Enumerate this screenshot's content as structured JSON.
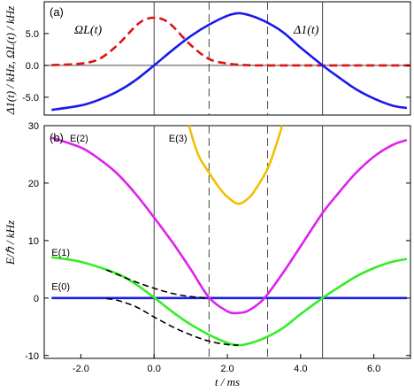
{
  "chart_data": [
    {
      "panel": "(a)",
      "type": "line",
      "ylabel": "Δ1(t) / kHz,  ΩL(t) / kHz",
      "xlim": [
        -3,
        7
      ],
      "ylim": [
        -7.8,
        10
      ],
      "yticks": [
        "-5.0",
        "0.0",
        "5.0"
      ],
      "ytick_values": [
        -5,
        0,
        5
      ],
      "series": [
        {
          "name": "ΩL(t)",
          "color": "#e01010",
          "dash": "dashed",
          "x": [
            -2.8,
            -2.0,
            -1.5,
            -1.0,
            -0.5,
            -0.25,
            0.0,
            0.25,
            0.5,
            1.0,
            1.5,
            2.0,
            2.5,
            3.0,
            4.0,
            5.0,
            6.0,
            7.0
          ],
          "y": [
            0.05,
            0.3,
            1.0,
            3.2,
            6.2,
            7.2,
            7.5,
            7.2,
            6.2,
            3.2,
            1.0,
            0.3,
            0.05,
            0.0,
            0.0,
            0.0,
            0.0,
            0.0
          ]
        },
        {
          "name": "Δ1(t)",
          "color": "#1a1aee",
          "dash": "solid",
          "x": [
            -2.8,
            -2.0,
            -1.5,
            -1.0,
            -0.5,
            0.0,
            0.5,
            1.0,
            1.5,
            2.0,
            2.3,
            2.6,
            3.0,
            3.5,
            4.0,
            4.6,
            5.0,
            5.5,
            6.0,
            6.5,
            6.9
          ],
          "y": [
            -7.0,
            -6.3,
            -5.4,
            -4.1,
            -2.3,
            0.0,
            2.4,
            4.6,
            6.4,
            7.8,
            8.2,
            7.9,
            7.0,
            5.3,
            2.8,
            0.0,
            -1.7,
            -3.7,
            -5.2,
            -6.3,
            -6.7
          ]
        }
      ],
      "vlines_solid": [
        0.0,
        4.6
      ],
      "vlines_dashed": [
        1.5,
        3.1
      ]
    },
    {
      "panel": "(b)",
      "type": "line",
      "xlabel": "t / ms",
      "ylabel": "E/ℏ / kHz",
      "xlim": [
        -3,
        7
      ],
      "ylim": [
        -10.5,
        30
      ],
      "xticks": [
        "-2.0",
        "0.0",
        "2.0",
        "4.0",
        "6.0"
      ],
      "xtick_values": [
        -2,
        0,
        2,
        4,
        6
      ],
      "yticks": [
        "-10",
        "0",
        "10",
        "20",
        "30"
      ],
      "ytick_values": [
        -10,
        0,
        10,
        20,
        30
      ],
      "series": [
        {
          "name": "E(0)",
          "color": "#1a1aee",
          "dash": "solid",
          "x": [
            -2.8,
            6.9
          ],
          "y": [
            0.0,
            0.0
          ]
        },
        {
          "name": "E(1)",
          "color": "#33ee22",
          "dash": "solid",
          "x": [
            -2.8,
            -2.0,
            -1.0,
            -0.5,
            0.0,
            0.5,
            1.0,
            1.5,
            2.0,
            2.3,
            2.6,
            3.0,
            3.5,
            4.0,
            4.6,
            5.0,
            5.5,
            6.0,
            6.5,
            6.9
          ],
          "y": [
            7.1,
            6.3,
            4.2,
            2.4,
            0.1,
            -2.4,
            -4.6,
            -6.4,
            -7.8,
            -8.2,
            -7.9,
            -7.0,
            -5.3,
            -2.8,
            0.0,
            1.7,
            3.7,
            5.2,
            6.3,
            6.8
          ]
        },
        {
          "name": "E(2)",
          "color": "#dd22ee",
          "dash": "solid",
          "x": [
            -2.8,
            -2.0,
            -1.5,
            -1.0,
            -0.5,
            0.0,
            0.5,
            1.0,
            1.5,
            2.0,
            2.3,
            2.6,
            3.0,
            3.5,
            4.0,
            4.6,
            5.0,
            5.5,
            6.0,
            6.5,
            6.9
          ],
          "y": [
            27.9,
            26.2,
            24.2,
            21.6,
            18.1,
            14.0,
            9.7,
            5.0,
            0.1,
            -2.3,
            -2.6,
            -2.1,
            -0.1,
            4.2,
            9.0,
            14.8,
            18.0,
            21.7,
            24.6,
            26.6,
            27.5
          ]
        },
        {
          "name": "E(3)",
          "color": "#f2c000",
          "dash": "solid",
          "x": [
            0.95,
            1.2,
            1.5,
            1.8,
            2.0,
            2.3,
            2.6,
            2.8,
            3.1,
            3.3,
            3.5
          ],
          "y": [
            30.0,
            25.0,
            21.8,
            19.0,
            17.6,
            16.4,
            17.5,
            19.2,
            22.5,
            26.0,
            30.0
          ]
        },
        {
          "name": "",
          "color": "#000000",
          "dash": "dashed",
          "x": [
            -1.3,
            -1.0,
            -0.5,
            0.0,
            0.5,
            1.0,
            1.5
          ],
          "y": [
            4.9,
            4.1,
            2.8,
            1.7,
            0.8,
            0.25,
            0.0
          ]
        },
        {
          "name": "",
          "color": "#000000",
          "dash": "dashed",
          "x": [
            -1.3,
            -1.0,
            -0.5,
            0.0,
            0.5,
            1.0,
            1.5,
            2.0,
            2.3
          ],
          "y": [
            -0.1,
            -0.4,
            -1.5,
            -3.3,
            -5.0,
            -6.4,
            -7.5,
            -8.1,
            -8.2
          ]
        }
      ],
      "curve_labels": [
        {
          "text": "E(2)",
          "x": -2.3,
          "y": 27.2
        },
        {
          "text": "E(3)",
          "x": 0.4,
          "y": 27.2
        },
        {
          "text": "E(1)",
          "x": -2.8,
          "y": 7.4
        },
        {
          "text": "E(0)",
          "x": -2.8,
          "y": 1.4
        }
      ],
      "vlines_solid": [
        0.0,
        4.6
      ],
      "vlines_dashed": [
        1.5,
        3.1
      ]
    }
  ],
  "labels": {
    "panel_a": "(a)",
    "panel_b": "(b)",
    "omega_label": "ΩL(t)",
    "delta_label": "Δ1(t)",
    "ylabel_a": "Δ1(t) / kHz,  ΩL(t) / kHz",
    "ylabel_b": "E/ℏ / kHz",
    "xlabel": "t / ms"
  }
}
